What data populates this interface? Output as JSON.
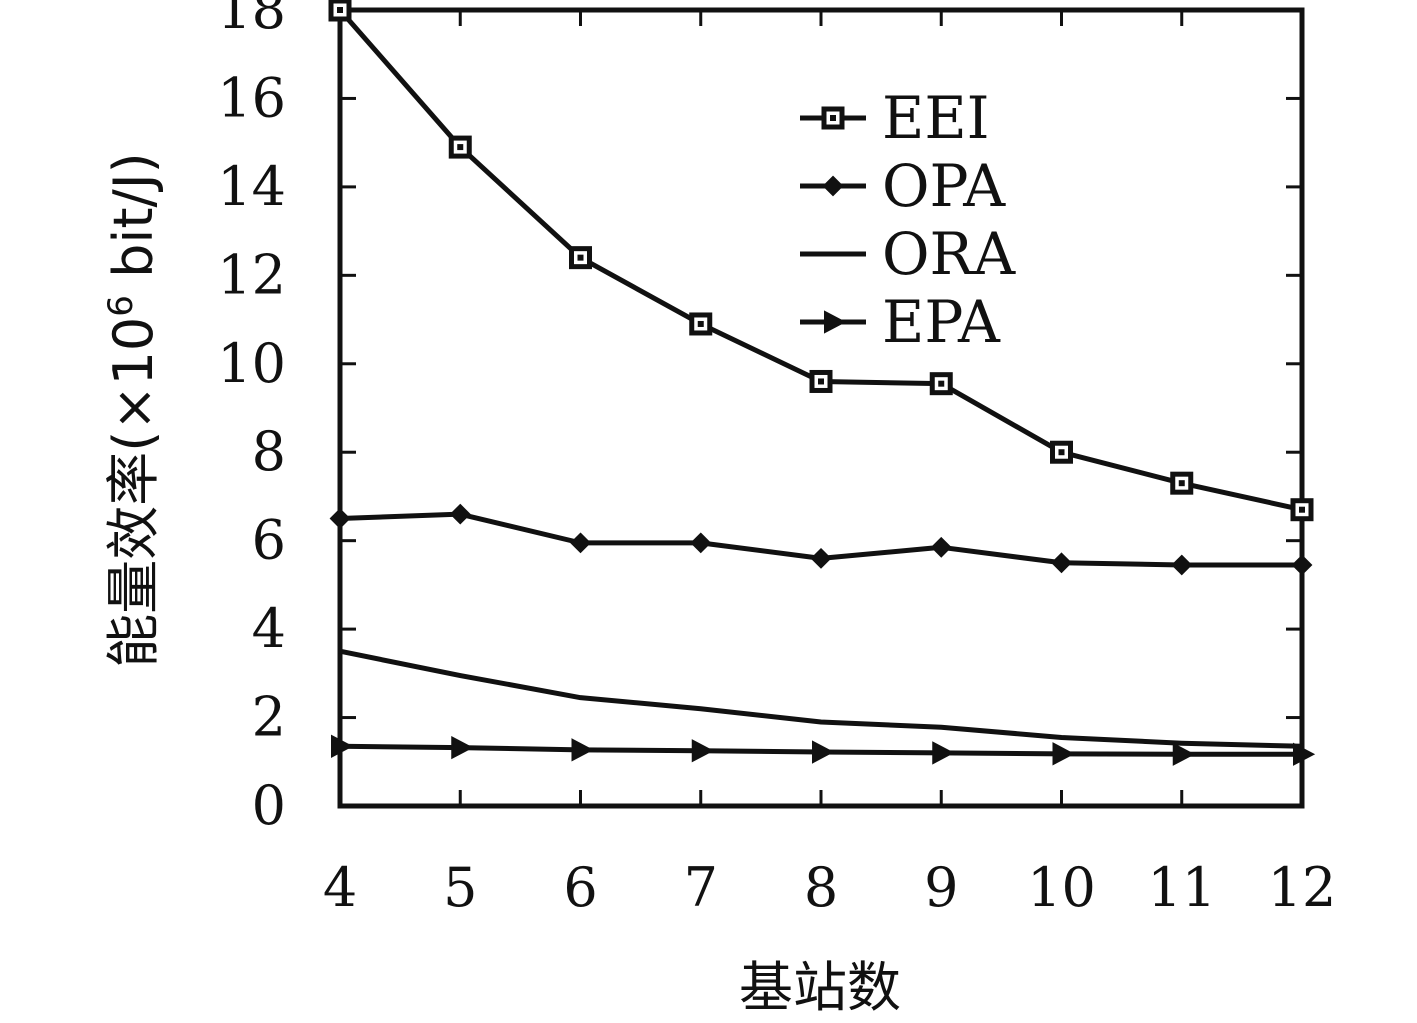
{
  "chart_data": {
    "type": "line",
    "title": "",
    "xlabel": "基站数",
    "ylabel_text": "能量效率(×10",
    "ylabel_superscript": "6",
    "ylabel_unit": " bit/J)",
    "x": [
      4,
      5,
      6,
      7,
      8,
      9,
      10,
      11,
      12
    ],
    "x_ticks": [
      "4",
      "5",
      "6",
      "7",
      "8",
      "9",
      "10",
      "11",
      "12"
    ],
    "xlim": [
      4,
      12
    ],
    "ylim": [
      0,
      18
    ],
    "y_ticks": [
      "0",
      "2",
      "4",
      "6",
      "8",
      "10",
      "12",
      "14",
      "16",
      "18"
    ],
    "grid": false,
    "legend_position": "top-right",
    "series": [
      {
        "name": "EEI",
        "marker": "square",
        "color": "#111111",
        "values": [
          18.0,
          14.9,
          12.4,
          10.9,
          9.6,
          9.55,
          8.0,
          7.3,
          6.7
        ]
      },
      {
        "name": "OPA",
        "marker": "diamond",
        "color": "#111111",
        "values": [
          6.5,
          6.6,
          5.95,
          5.95,
          5.6,
          5.85,
          5.5,
          5.45,
          5.45
        ]
      },
      {
        "name": "ORA",
        "marker": "none",
        "color": "#111111",
        "values": [
          3.5,
          2.95,
          2.45,
          2.2,
          1.9,
          1.78,
          1.55,
          1.42,
          1.35
        ]
      },
      {
        "name": "EPA",
        "marker": "triangle-right",
        "color": "#111111",
        "values": [
          1.35,
          1.32,
          1.27,
          1.25,
          1.22,
          1.2,
          1.18,
          1.17,
          1.17
        ]
      }
    ]
  }
}
